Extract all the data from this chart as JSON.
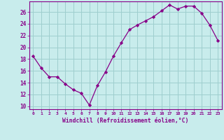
{
  "x": [
    0,
    1,
    2,
    3,
    4,
    5,
    6,
    7,
    8,
    9,
    10,
    11,
    12,
    13,
    14,
    15,
    16,
    17,
    18,
    19,
    20,
    21,
    22,
    23
  ],
  "y": [
    18.5,
    16.5,
    15.0,
    15.0,
    13.8,
    12.8,
    12.2,
    10.2,
    13.5,
    15.8,
    18.5,
    20.8,
    23.0,
    23.8,
    24.5,
    25.2,
    26.2,
    27.2,
    26.5,
    27.0,
    27.0,
    25.8,
    23.8,
    21.2
  ],
  "line_color": "#880088",
  "marker": "D",
  "marker_size": 2.2,
  "bg_color": "#c8ecec",
  "grid_color": "#9ecece",
  "xlabel": "Windchill (Refroidissement éolien,°C)",
  "xlabel_color": "#880088",
  "ylabel_ticks": [
    10,
    12,
    14,
    16,
    18,
    20,
    22,
    24,
    26
  ],
  "ylim": [
    9.5,
    27.8
  ],
  "xlim": [
    -0.5,
    23.5
  ],
  "xticks": [
    0,
    1,
    2,
    3,
    4,
    5,
    6,
    7,
    8,
    9,
    10,
    11,
    12,
    13,
    14,
    15,
    16,
    17,
    18,
    19,
    20,
    21,
    22,
    23
  ]
}
